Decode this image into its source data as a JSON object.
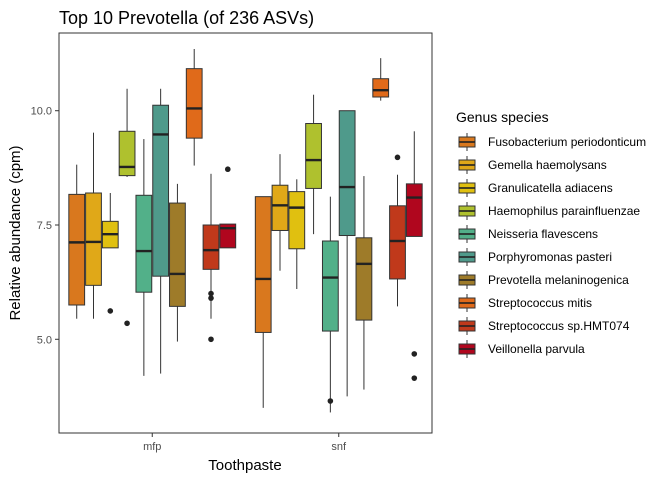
{
  "chart_data": {
    "type": "boxplot",
    "title": "Top 10 Prevotella (of 236 ASVs)",
    "xlabel": "Toothpaste",
    "ylabel": "Relative abundance (cpm)",
    "categories": [
      "mfp",
      "snf"
    ],
    "yticks": [
      5.0,
      7.5,
      10.0
    ],
    "ytick_labels": [
      "5.0",
      "7.5",
      "10.0"
    ],
    "ylim": [
      2.95,
      11.7
    ],
    "grid": false,
    "legend_title": "Genus species",
    "legend_position": "right",
    "series": [
      {
        "name": "Fusobacterium periodonticum",
        "color": "#D9781E",
        "boxes": [
          {
            "category": "mfp",
            "lower": 5.45,
            "q1": 5.75,
            "median": 7.12,
            "q3": 8.17,
            "upper": 8.82,
            "outliers": []
          },
          {
            "category": "snf",
            "lower": 3.5,
            "q1": 5.15,
            "median": 6.32,
            "q3": 8.12,
            "upper": 8.12,
            "outliers": []
          }
        ]
      },
      {
        "name": "Gemella haemolysans",
        "color": "#E0A818",
        "boxes": [
          {
            "category": "mfp",
            "lower": 5.45,
            "q1": 6.18,
            "median": 7.13,
            "q3": 8.2,
            "upper": 9.52,
            "outliers": []
          },
          {
            "category": "snf",
            "lower": 6.5,
            "q1": 7.38,
            "median": 7.93,
            "q3": 8.37,
            "upper": 9.05,
            "outliers": []
          }
        ]
      },
      {
        "name": "Granulicatella adiacens",
        "color": "#E0C010",
        "boxes": [
          {
            "category": "mfp",
            "lower": 7.0,
            "q1": 7.0,
            "median": 7.3,
            "q3": 7.58,
            "upper": 8.2,
            "outliers": [
              5.62
            ]
          },
          {
            "category": "snf",
            "lower": 6.1,
            "q1": 6.98,
            "median": 7.88,
            "q3": 8.23,
            "upper": 8.5,
            "outliers": []
          }
        ]
      },
      {
        "name": "Haemophilus parainfluenzae",
        "color": "#AFC12E",
        "boxes": [
          {
            "category": "mfp",
            "lower": 8.55,
            "q1": 8.58,
            "median": 8.77,
            "q3": 9.55,
            "upper": 10.48,
            "outliers": [
              5.35
            ]
          },
          {
            "category": "snf",
            "lower": 7.3,
            "q1": 8.3,
            "median": 8.92,
            "q3": 9.72,
            "upper": 10.35,
            "outliers": []
          }
        ]
      },
      {
        "name": "Neisseria flavescens",
        "color": "#52B089",
        "boxes": [
          {
            "category": "mfp",
            "lower": 4.2,
            "q1": 6.03,
            "median": 6.93,
            "q3": 8.15,
            "upper": 9.38,
            "outliers": []
          },
          {
            "category": "snf",
            "lower": 3.4,
            "q1": 5.18,
            "median": 6.35,
            "q3": 7.15,
            "upper": 8.12,
            "outliers": [
              3.65
            ]
          }
        ]
      },
      {
        "name": "Porphyromonas pasteri",
        "color": "#4F9A8B",
        "boxes": [
          {
            "category": "mfp",
            "lower": 4.25,
            "q1": 6.38,
            "median": 9.48,
            "q3": 10.12,
            "upper": 10.48,
            "outliers": []
          },
          {
            "category": "snf",
            "lower": 3.75,
            "q1": 7.27,
            "median": 8.33,
            "q3": 10.0,
            "upper": 10.0,
            "outliers": []
          }
        ]
      },
      {
        "name": "Prevotella melaninogenica",
        "color": "#9E7B29",
        "boxes": [
          {
            "category": "mfp",
            "lower": 4.95,
            "q1": 5.72,
            "median": 6.43,
            "q3": 7.98,
            "upper": 8.4,
            "outliers": []
          },
          {
            "category": "snf",
            "lower": 3.9,
            "q1": 5.42,
            "median": 6.65,
            "q3": 7.22,
            "upper": 8.57,
            "outliers": []
          }
        ]
      },
      {
        "name": "Streptococcus mitis",
        "color": "#E06A1A",
        "boxes": [
          {
            "category": "mfp",
            "lower": 8.8,
            "q1": 9.4,
            "median": 10.05,
            "q3": 10.92,
            "upper": 11.35,
            "outliers": []
          },
          {
            "category": "snf",
            "lower": 10.22,
            "q1": 10.3,
            "median": 10.45,
            "q3": 10.7,
            "upper": 11.15,
            "outliers": []
          }
        ]
      },
      {
        "name": "Streptococcus sp.HMT074",
        "color": "#C0391B",
        "boxes": [
          {
            "category": "mfp",
            "lower": 5.45,
            "q1": 6.53,
            "median": 6.95,
            "q3": 7.5,
            "upper": 8.62,
            "outliers": [
              5.9,
              6.0,
              5.0
            ]
          },
          {
            "category": "snf",
            "lower": 5.72,
            "q1": 6.32,
            "median": 7.15,
            "q3": 7.92,
            "upper": 8.6,
            "outliers": [
              8.98
            ]
          }
        ]
      },
      {
        "name": "Veillonella parvula",
        "color": "#B0061E",
        "boxes": [
          {
            "category": "mfp",
            "lower": 7.0,
            "q1": 7.0,
            "median": 7.43,
            "q3": 7.52,
            "upper": 7.52,
            "outliers": [
              8.72
            ]
          },
          {
            "category": "snf",
            "lower": 7.25,
            "q1": 7.25,
            "median": 8.1,
            "q3": 8.4,
            "upper": 9.55,
            "outliers": [
              4.68,
              4.15
            ]
          }
        ]
      }
    ]
  }
}
